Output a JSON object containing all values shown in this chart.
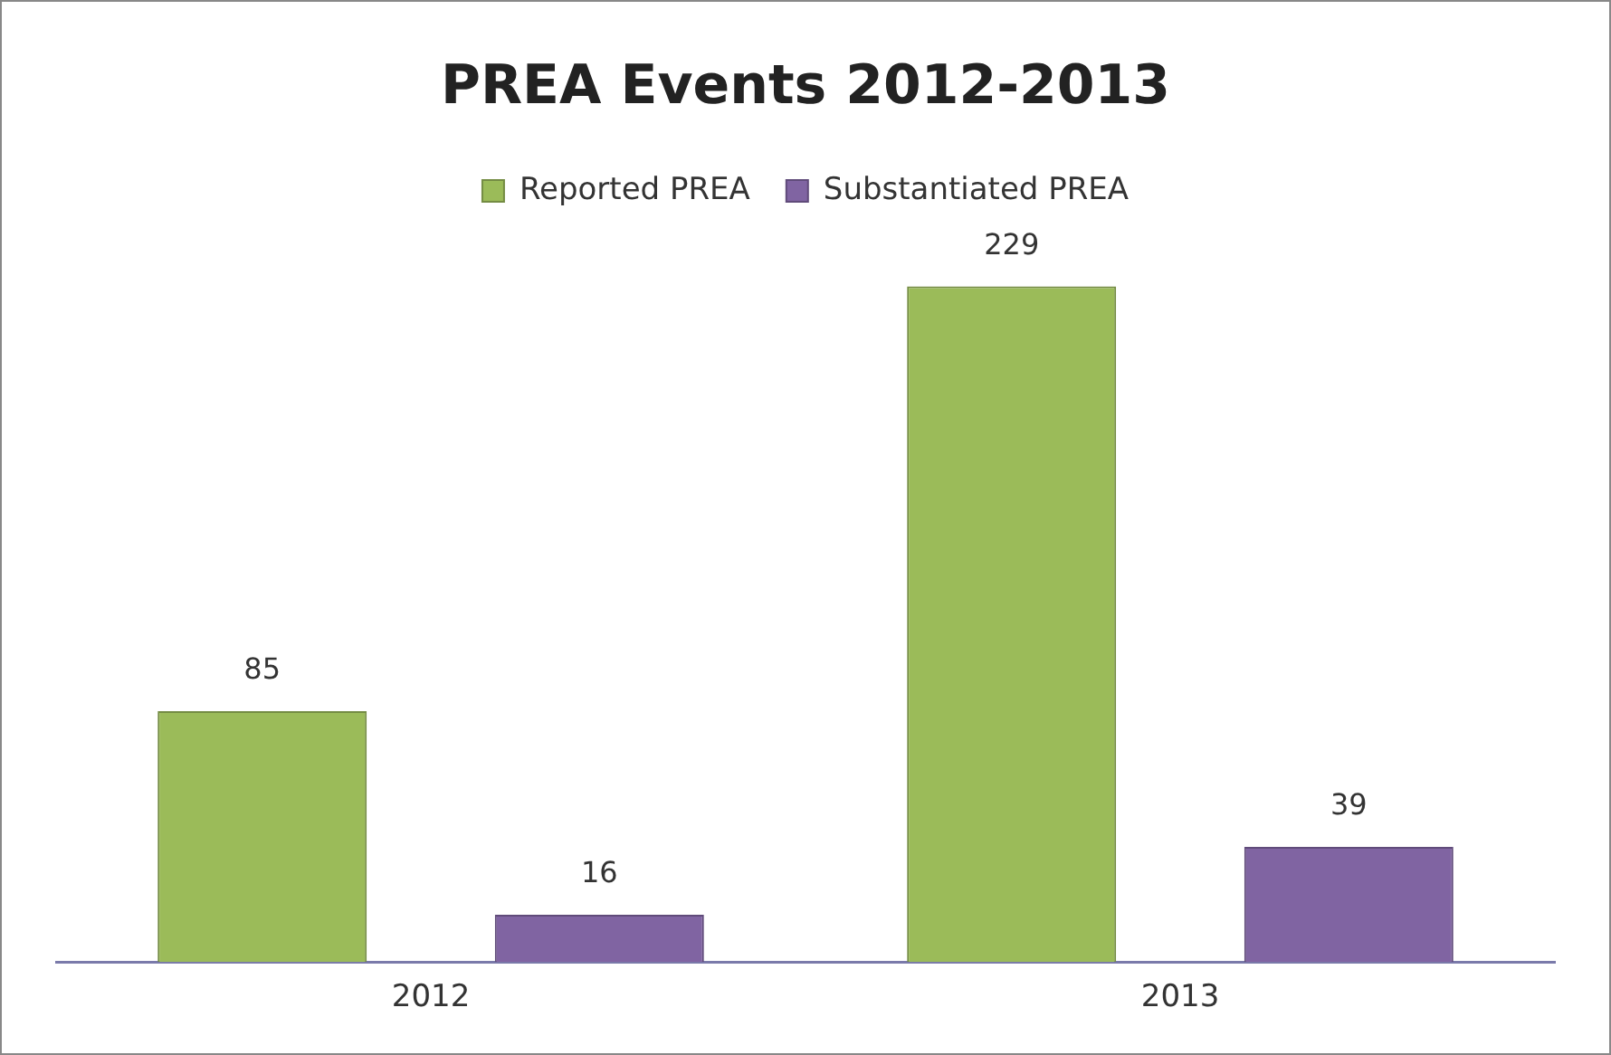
{
  "chart_data": {
    "type": "bar",
    "title": "PREA Events 2012-2013",
    "categories": [
      "2012",
      "2013"
    ],
    "series": [
      {
        "name": "Reported PREA",
        "color": "#9bbb59",
        "values": [
          85,
          229
        ]
      },
      {
        "name": "Substantiated PREA",
        "color": "#8064a2",
        "values": [
          16,
          39
        ]
      }
    ],
    "legend": "top",
    "data_labels": true,
    "grid": false
  }
}
